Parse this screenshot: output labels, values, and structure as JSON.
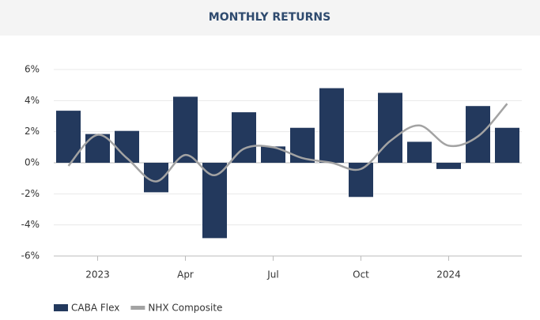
{
  "chart_data": {
    "type": "bar_line",
    "title": "MONTHLY RETURNS",
    "categories": [
      null,
      "2023",
      null,
      null,
      "Apr",
      null,
      null,
      "Jul",
      null,
      null,
      "Oct",
      null,
      null,
      "2024",
      null,
      null
    ],
    "series": [
      {
        "name": "CABA Flex",
        "type": "bar",
        "color": "#23395d",
        "values": [
          3.35,
          1.85,
          2.05,
          -1.9,
          4.25,
          -4.85,
          3.25,
          1.05,
          2.25,
          4.8,
          -2.2,
          4.5,
          1.35,
          -0.4,
          3.65,
          2.25
        ]
      },
      {
        "name": "NHX Composite",
        "type": "line",
        "color": "#a3a3a3",
        "values": [
          -0.2,
          1.8,
          0.3,
          -1.2,
          0.5,
          -0.8,
          0.9,
          1.0,
          0.3,
          0.0,
          -0.4,
          1.4,
          2.4,
          1.1,
          1.7,
          3.8
        ]
      }
    ],
    "ylim": [
      -6,
      6
    ],
    "yticks": [
      {
        "value": -6,
        "label": "-6%"
      },
      {
        "value": -4,
        "label": "-4%"
      },
      {
        "value": -2,
        "label": "-2%"
      },
      {
        "value": 0,
        "label": "0%"
      },
      {
        "value": 2,
        "label": "2%"
      },
      {
        "value": 4,
        "label": "4%"
      },
      {
        "value": 6,
        "label": "6%"
      }
    ],
    "grid": true,
    "legend": "bottom-left"
  }
}
